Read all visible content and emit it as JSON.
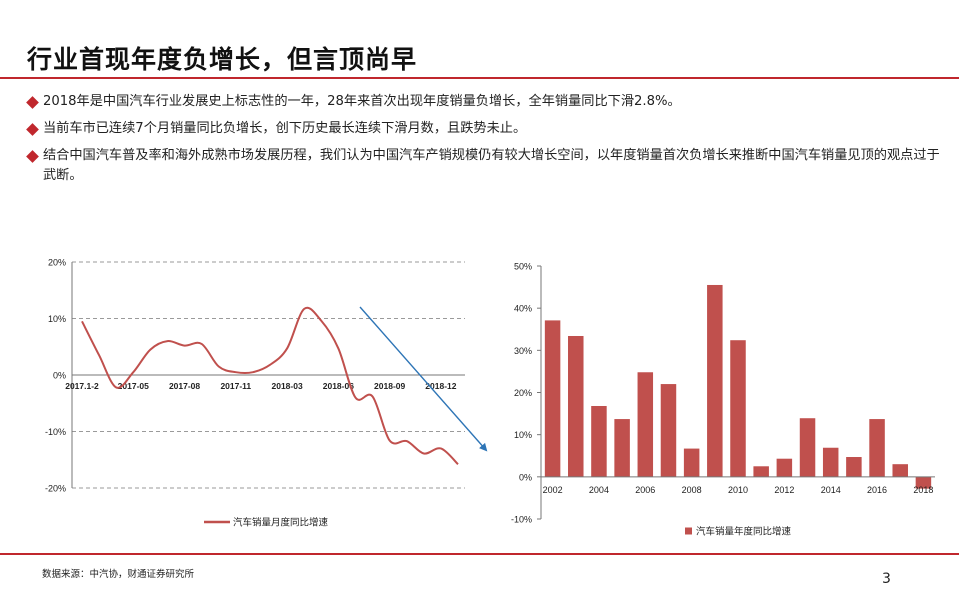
{
  "title": "行业首现年度负增长，但言顶尚早",
  "bullets": [
    "2018年是中国汽车行业发展史上标志性的一年，28年来首次出现年度销量负增长，全年销量同比下滑2.8%。",
    "当前车市已连续7个月销量同比负增长，创下历史最长连续下滑月数，且跌势未止。",
    "结合中国汽车普及率和海外成熟市场发展历程，我们认为中国汽车产销规模仍有较大增长空间，以年度销量首次负增长来推断中国汽车销量见顶的观点过于武断。"
  ],
  "colors": {
    "accent": "#c0272d",
    "bar": "#c0504d",
    "line": "#c0504d",
    "arrow": "#2e75b6"
  },
  "chart_data": [
    {
      "type": "line",
      "y_tick_labels": [
        "20%",
        "10%",
        "0%",
        "-10%",
        "-20%"
      ],
      "ylim": [
        -20,
        20
      ],
      "grid": true,
      "x_tick_labels": [
        "2017.1-2",
        "2017-05",
        "2017-08",
        "2017-11",
        "2018-03",
        "2018-06",
        "2018-09",
        "2018-12"
      ],
      "series": [
        {
          "name": "汽车销量月度同比增速",
          "points": [
            {
              "x": "2017.1-2",
              "y": 9.5
            },
            {
              "x": "2017-03",
              "y": 3.5
            },
            {
              "x": "2017-04",
              "y": -2.2
            },
            {
              "x": "2017-05",
              "y": 0.5
            },
            {
              "x": "2017-06",
              "y": 4.5
            },
            {
              "x": "2017-07",
              "y": 6.0
            },
            {
              "x": "2017-08",
              "y": 5.2
            },
            {
              "x": "2017-09",
              "y": 5.5
            },
            {
              "x": "2017-10",
              "y": 1.5
            },
            {
              "x": "2017-11",
              "y": 0.5
            },
            {
              "x": "2017-12",
              "y": 0.5
            },
            {
              "x": "2018-01",
              "y": 1.8
            },
            {
              "x": "2018-03",
              "y": 4.7
            },
            {
              "x": "2018-04",
              "y": 11.7
            },
            {
              "x": "2018-05",
              "y": 9.6
            },
            {
              "x": "2018-06",
              "y": 4.7
            },
            {
              "x": "2018-07",
              "y": -4.0
            },
            {
              "x": "2018-08",
              "y": -3.8
            },
            {
              "x": "2018-09",
              "y": -11.6
            },
            {
              "x": "2018-10",
              "y": -11.7
            },
            {
              "x": "2018-11",
              "y": -13.9
            },
            {
              "x": "2018-12",
              "y": -13.0
            },
            {
              "x": "2019-01",
              "y": -15.8
            }
          ]
        }
      ],
      "legend": "bottom"
    },
    {
      "type": "bar",
      "categories": [
        "2002",
        "2003",
        "2004",
        "2005",
        "2006",
        "2007",
        "2008",
        "2009",
        "2010",
        "2011",
        "2012",
        "2013",
        "2014",
        "2015",
        "2016",
        "2017",
        "2018"
      ],
      "x_tick_labels": [
        "2002",
        "2004",
        "2006",
        "2008",
        "2010",
        "2012",
        "2014",
        "2016",
        "2018"
      ],
      "series": [
        {
          "name": "汽车销量年度同比增速",
          "values": [
            37.1,
            33.4,
            16.8,
            13.7,
            24.8,
            22.0,
            6.7,
            45.5,
            32.4,
            2.5,
            4.3,
            13.9,
            6.9,
            4.7,
            13.7,
            3.0,
            -2.8
          ]
        }
      ],
      "y_tick_labels": [
        "50%",
        "40%",
        "30%",
        "20%",
        "10%",
        "0%",
        "-10%"
      ],
      "ylim": [
        -10,
        50
      ],
      "grid": false,
      "legend": "bottom"
    }
  ],
  "source": "数据来源：中汽协，财通证券研究所",
  "page_number": "3"
}
